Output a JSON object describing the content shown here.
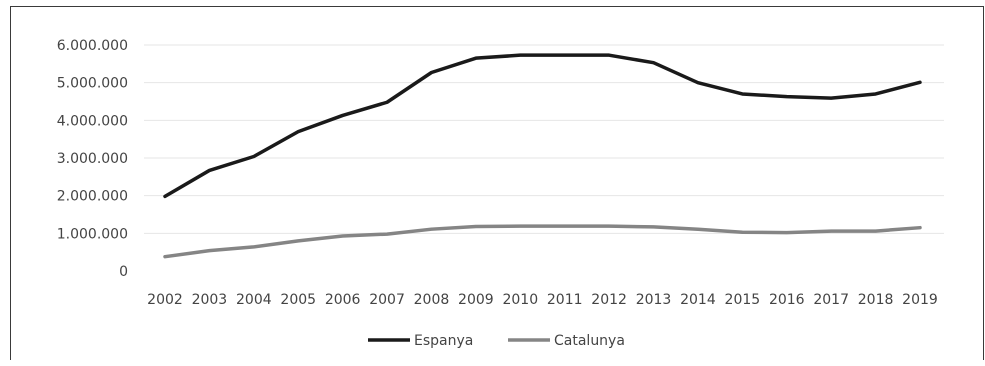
{
  "chart_data": {
    "type": "line",
    "title": "",
    "xlabel": "",
    "ylabel": "",
    "x": [
      "2002",
      "2003",
      "2004",
      "2005",
      "2006",
      "2007",
      "2008",
      "2009",
      "2010",
      "2011",
      "2012",
      "2013",
      "2014",
      "2015",
      "2016",
      "2017",
      "2018",
      "2019"
    ],
    "ylim": [
      0,
      6000000
    ],
    "yticks": [
      0,
      1000000,
      2000000,
      3000000,
      4000000,
      5000000,
      6000000
    ],
    "ytick_labels": [
      "0",
      "1.000.000",
      "2.000.000",
      "3.000.000",
      "4.000.000",
      "5.000.000",
      "6.000.000"
    ],
    "grid": true,
    "legend_position": "bottom",
    "series": [
      {
        "name": "Espanya",
        "color": "#1a1a1a",
        "values": [
          1980000,
          2670000,
          3040000,
          3700000,
          4130000,
          4480000,
          5270000,
          5650000,
          5730000,
          5730000,
          5730000,
          5530000,
          5000000,
          4700000,
          4630000,
          4590000,
          4700000,
          5010000
        ]
      },
      {
        "name": "Catalunya",
        "color": "#858585",
        "values": [
          380000,
          540000,
          640000,
          800000,
          930000,
          980000,
          1110000,
          1180000,
          1190000,
          1190000,
          1190000,
          1170000,
          1110000,
          1030000,
          1020000,
          1060000,
          1060000,
          1150000
        ]
      }
    ]
  }
}
